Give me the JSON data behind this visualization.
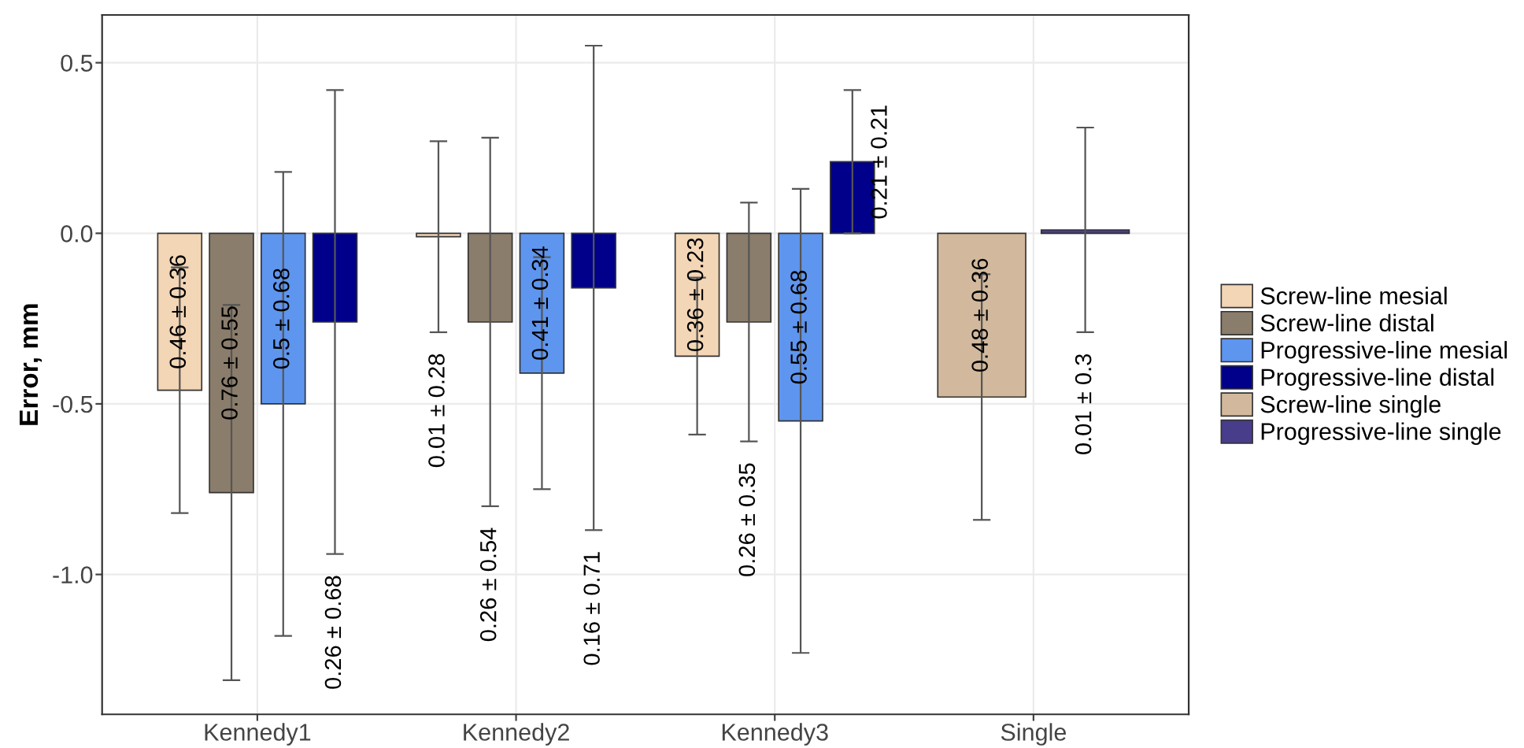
{
  "chart_data": {
    "type": "bar",
    "ylabel": "Error, mm",
    "categories": [
      "Kennedy1",
      "Kennedy2",
      "Kennedy3",
      "Single"
    ],
    "series": [
      {
        "name": "Screw-line mesial",
        "color": "#f3d6b6",
        "values": [
          -0.46,
          -0.01,
          -0.36,
          null
        ],
        "errors": [
          0.36,
          0.28,
          0.23,
          null
        ]
      },
      {
        "name": "Screw-line distal",
        "color": "#8b7d6b",
        "values": [
          -0.76,
          -0.26,
          -0.26,
          null
        ],
        "errors": [
          0.55,
          0.54,
          0.35,
          null
        ]
      },
      {
        "name": "Progressive-line mesial",
        "color": "#5e95ee",
        "values": [
          -0.5,
          -0.41,
          -0.55,
          null
        ],
        "errors": [
          0.68,
          0.34,
          0.68,
          null
        ]
      },
      {
        "name": "Progressive-line distal",
        "color": "#00008b",
        "values": [
          -0.26,
          -0.16,
          0.21,
          null
        ],
        "errors": [
          0.68,
          0.71,
          0.21,
          null
        ]
      },
      {
        "name": "Screw-line single",
        "color": "#d2b99d",
        "values": [
          null,
          null,
          null,
          -0.48
        ],
        "errors": [
          null,
          null,
          null,
          0.36
        ]
      },
      {
        "name": "Progressive-line single",
        "color": "#483d8b",
        "values": [
          null,
          null,
          null,
          0.01
        ],
        "errors": [
          null,
          null,
          null,
          0.3
        ]
      }
    ],
    "annotations": [
      "0.46 ± 0.36",
      "0.76 ± 0.55",
      "0.5 ± 0.68",
      "0.26 ± 0.68",
      "0.01 ± 0.28",
      "0.26 ± 0.54",
      "0.41 ± 0.34",
      "0.16 ± 0.71",
      "0.36 ± 0.23",
      "0.26 ± 0.35",
      "0.55 ± 0.68",
      "0.21 ± 0.21",
      "0.48 ± 0.36",
      "0.01 ± 0.3"
    ],
    "ylim": [
      -1.41,
      0.64
    ],
    "yticks": [
      {
        "value": -1.0,
        "label": "-1.0"
      },
      {
        "value": -0.5,
        "label": "-0.5"
      },
      {
        "value": 0.0,
        "label": "0.0"
      },
      {
        "value": 0.5,
        "label": "0.5"
      }
    ],
    "grid": true,
    "legend": "right"
  }
}
